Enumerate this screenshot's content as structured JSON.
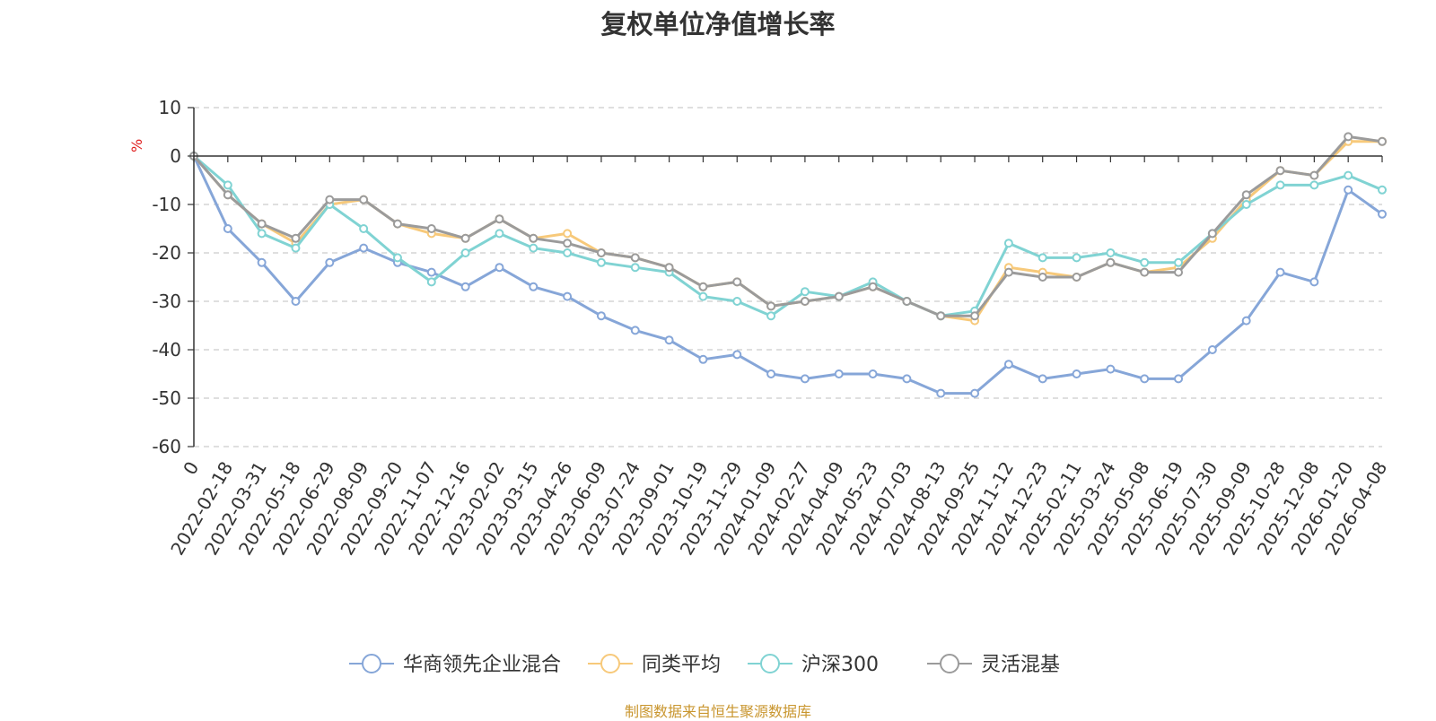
{
  "chart_data": {
    "type": "line",
    "title": "复权单位净值增长率",
    "ylabel": "%",
    "ylim": [
      -60,
      10
    ],
    "yticks": [
      10,
      0,
      -10,
      -20,
      -30,
      -40,
      -50,
      -60
    ],
    "grid": true,
    "legend_position": "bottom-center",
    "x": [
      "0",
      "2022-02-18",
      "2022-03-31",
      "2022-05-18",
      "2022-06-29",
      "2022-08-09",
      "2022-09-20",
      "2022-11-07",
      "2022-12-16",
      "2023-02-02",
      "2023-03-15",
      "2023-04-26",
      "2023-06-09",
      "2023-07-24",
      "2023-09-01",
      "2023-10-19",
      "2023-11-29",
      "2024-01-09",
      "2024-02-27",
      "2024-04-09",
      "2024-05-23",
      "2024-07-03",
      "2024-08-13",
      "2024-09-25",
      "2024-11-12",
      "2024-12-23",
      "2025-02-11",
      "2025-03-24",
      "2025-05-08",
      "2025-06-19",
      "2025-07-30",
      "2025-09-09",
      "2025-10-28",
      "2025-12-08",
      "2026-01-20",
      "2026-04-08"
    ],
    "series": [
      {
        "name": "华商领先企业混合",
        "color": "#86a6d8",
        "values": [
          0,
          -15,
          -22,
          -30,
          -22,
          -19,
          -22,
          -24,
          -27,
          -23,
          -27,
          -29,
          -33,
          -36,
          -38,
          -42,
          -41,
          -45,
          -46,
          -45,
          -45,
          -46,
          -49,
          -49,
          -43,
          -46,
          -45,
          -44,
          -46,
          -46,
          -40,
          -34,
          -24,
          -26,
          -7,
          -12
        ]
      },
      {
        "name": "同类平均",
        "color": "#f7c97a",
        "values": [
          0,
          -8,
          -14,
          -18,
          -10,
          -9,
          -14,
          -16,
          -17,
          -13,
          -17,
          -16,
          -20,
          -21,
          -23,
          -27,
          -26,
          -31,
          -30,
          -29,
          -27,
          -30,
          -33,
          -34,
          -23,
          -24,
          -25,
          -22,
          -24,
          -23,
          -17,
          -9,
          -3,
          -4,
          3,
          3
        ]
      },
      {
        "name": "沪深300",
        "color": "#80d3d3",
        "values": [
          0,
          -6,
          -16,
          -19,
          -10,
          -15,
          -21,
          -26,
          -20,
          -16,
          -19,
          -20,
          -22,
          -23,
          -24,
          -29,
          -30,
          -33,
          -28,
          -29,
          -26,
          -30,
          -33,
          -32,
          -18,
          -21,
          -21,
          -20,
          -22,
          -22,
          -16,
          -10,
          -6,
          -6,
          -4,
          -7
        ]
      },
      {
        "name": "灵活混基",
        "color": "#9b9b9b",
        "values": [
          0,
          -8,
          -14,
          -17,
          -9,
          -9,
          -14,
          -15,
          -17,
          -13,
          -17,
          -18,
          -20,
          -21,
          -23,
          -27,
          -26,
          -31,
          -30,
          -29,
          -27,
          -30,
          -33,
          -33,
          -24,
          -25,
          -25,
          -22,
          -24,
          -24,
          -16,
          -8,
          -3,
          -4,
          4,
          3
        ]
      }
    ]
  },
  "source_note": "制图数据来自恒生聚源数据库"
}
